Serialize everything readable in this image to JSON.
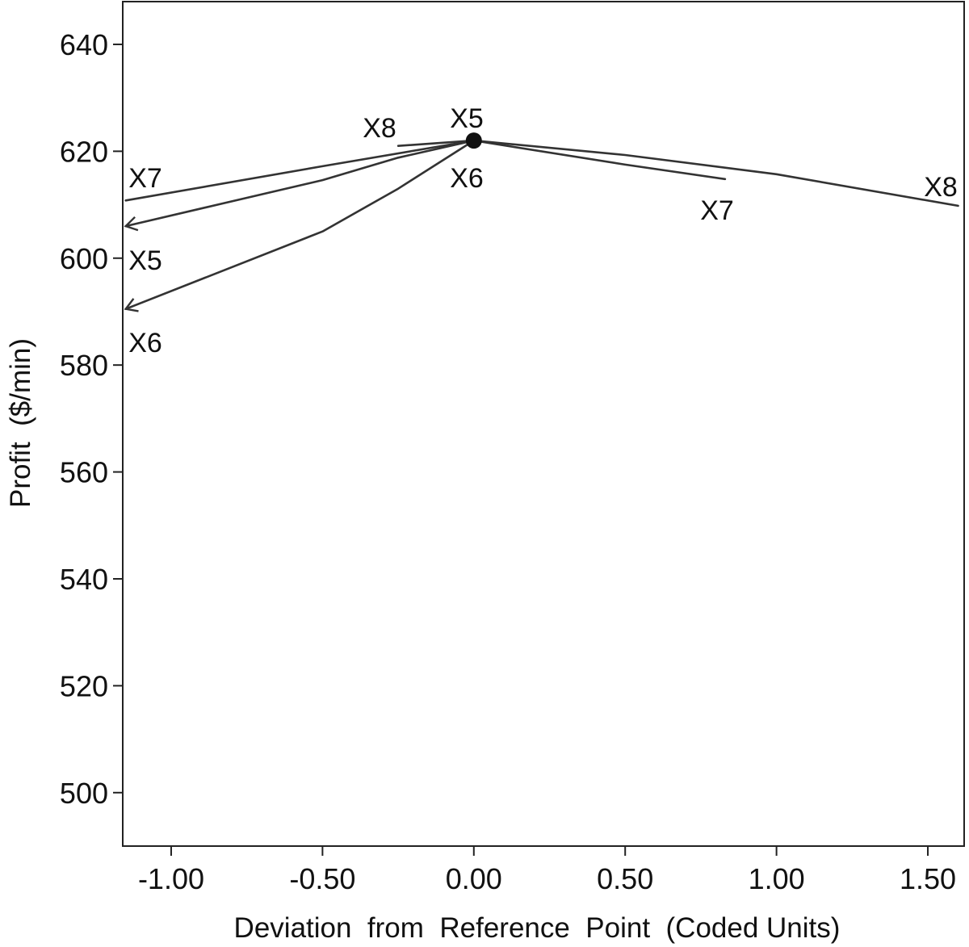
{
  "chart_data": {
    "type": "line",
    "title": "",
    "xlabel": "Deviation  from  Reference  Point  (Coded Units)",
    "ylabel": "Profit  ($/min)",
    "xlim": [
      -1.16,
      1.62
    ],
    "ylim": [
      490,
      648
    ],
    "x_ticks": [
      "-1.00",
      "-0.50",
      "0.00",
      "0.50",
      "1.00",
      "1.50"
    ],
    "x_tick_values": [
      -1.0,
      -0.5,
      0.0,
      0.5,
      1.0,
      1.5
    ],
    "y_ticks": [
      "640",
      "620",
      "600",
      "580",
      "560",
      "540",
      "520",
      "500"
    ],
    "y_tick_values": [
      640,
      620,
      600,
      580,
      560,
      540,
      520,
      500
    ],
    "grid": false,
    "reference_point": {
      "x": 0.0,
      "y": 622.0
    },
    "series": [
      {
        "name": "X5",
        "x": [
          -1.15,
          -0.5,
          -0.25,
          0.0
        ],
        "y": [
          606.0,
          614.6,
          618.8,
          622.0
        ],
        "start_label": "X5",
        "end_label": "X5"
      },
      {
        "name": "X6",
        "x": [
          -1.15,
          -0.5,
          -0.25,
          0.0
        ],
        "y": [
          590.5,
          605.0,
          613.0,
          622.0
        ],
        "start_label": "X6",
        "end_label": "X6"
      },
      {
        "name": "X7",
        "x": [
          -1.15,
          -0.5,
          0.0,
          0.5,
          0.83
        ],
        "y": [
          610.8,
          617.2,
          622.0,
          617.5,
          614.8
        ],
        "start_label": "X7",
        "end_label": "X7"
      },
      {
        "name": "X8",
        "x": [
          -0.25,
          0.0,
          0.5,
          1.0,
          1.6
        ],
        "y": [
          621.0,
          622.0,
          619.3,
          615.7,
          609.8
        ],
        "start_label": "X8",
        "end_label": "X8"
      }
    ]
  }
}
